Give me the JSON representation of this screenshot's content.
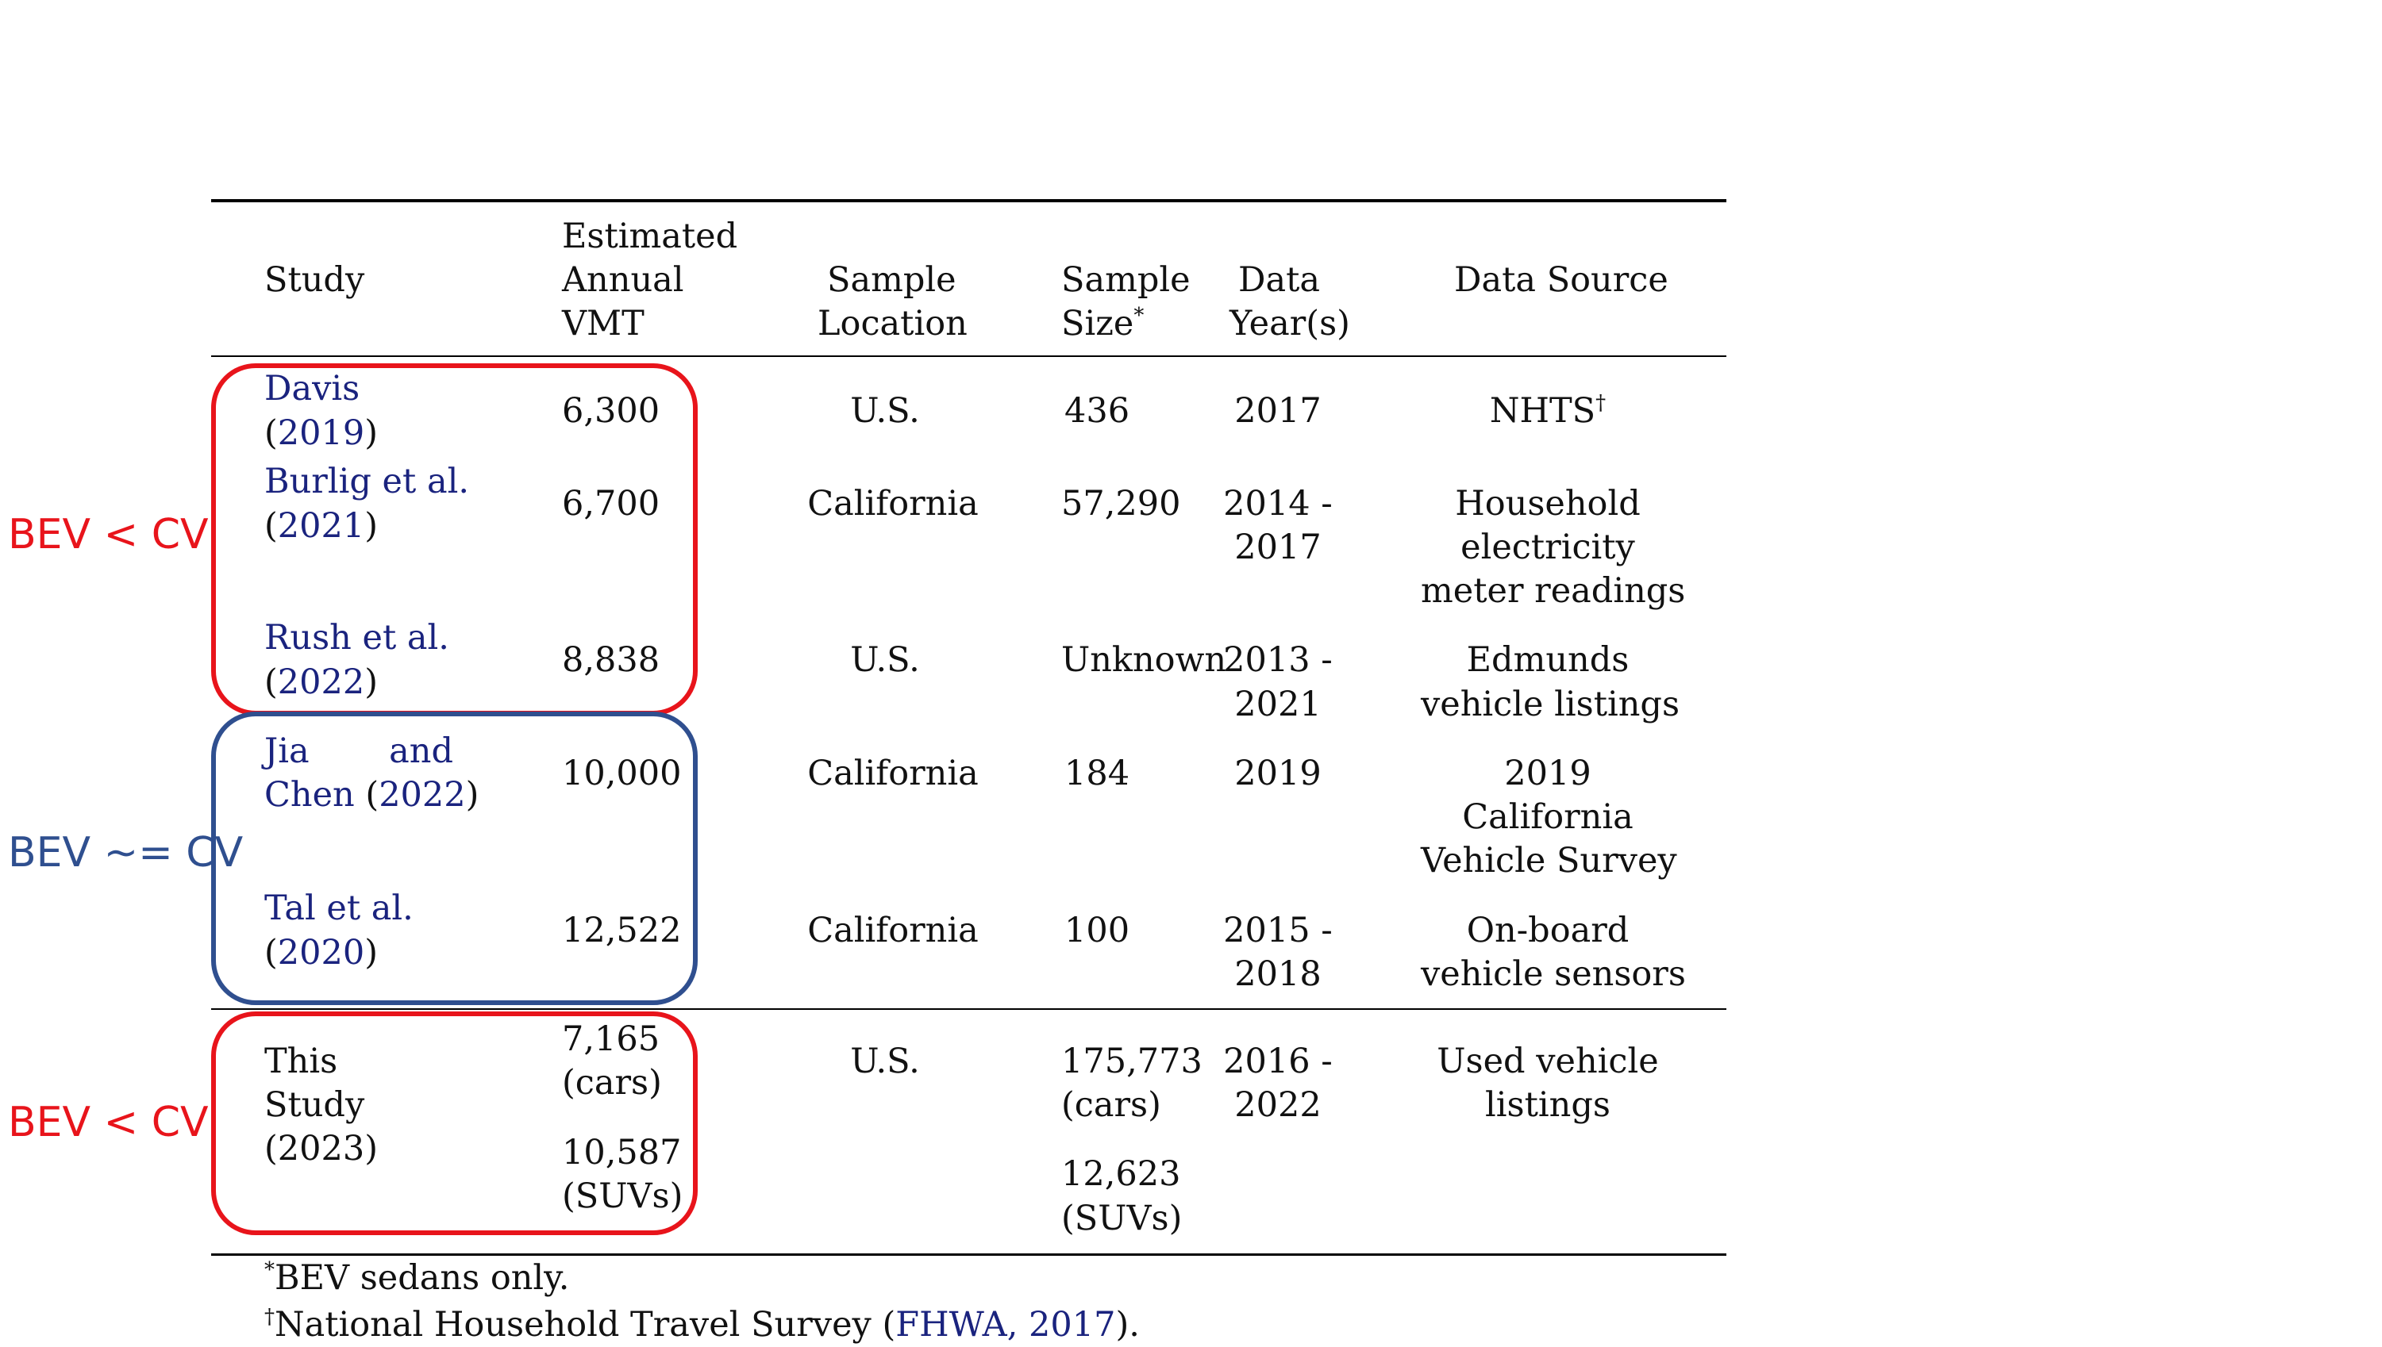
{
  "table": {
    "headers": {
      "study": "Study",
      "vmt": [
        "Estimated",
        "Annual",
        "VMT"
      ],
      "location": [
        "Sample",
        "Location"
      ],
      "size": [
        "Sample",
        "Size"
      ],
      "size_mark": "*",
      "year": [
        "Data",
        "Year(s)"
      ],
      "source": "Data Source"
    },
    "rows": [
      {
        "study": [
          "Davis",
          "(2019)"
        ],
        "vmt": [
          "6,300"
        ],
        "location": "U.S.",
        "size": [
          "436"
        ],
        "year": [
          "2017"
        ],
        "source": [
          "NHTS"
        ],
        "source_mark": "†"
      },
      {
        "study": [
          "Burlig et al.",
          "(2021)"
        ],
        "vmt": [
          "6,700"
        ],
        "location": "California",
        "size": [
          "57,290"
        ],
        "year": [
          "2014 -",
          "2017"
        ],
        "source": [
          "Household",
          "electricity",
          "meter readings"
        ]
      },
      {
        "study": [
          "Rush et al.",
          "(2022)"
        ],
        "vmt": [
          "8,838"
        ],
        "location": "U.S.",
        "size": [
          "Unknown"
        ],
        "year": [
          "2013 -",
          "2021"
        ],
        "source": [
          "Edmunds",
          "vehicle listings"
        ]
      },
      {
        "study": [
          "Jia and",
          "Chen (2022)"
        ],
        "vmt": [
          "10,000"
        ],
        "location": "California",
        "size": [
          "184"
        ],
        "year": [
          "2019"
        ],
        "source": [
          "2019",
          "California",
          "Vehicle Survey"
        ]
      },
      {
        "study": [
          "Tal et al.",
          "(2020)"
        ],
        "vmt": [
          "12,522"
        ],
        "location": "California",
        "size": [
          "100"
        ],
        "year": [
          "2015 -",
          "2018"
        ],
        "source": [
          "On-board",
          "vehicle sensors"
        ]
      },
      {
        "study": [
          "This",
          "Study",
          "(2023)"
        ],
        "vmt": [
          "7,165",
          "(cars)",
          "10,587",
          "(SUVs)"
        ],
        "location": "U.S.",
        "size": [
          "175,773",
          "(cars)",
          "12,623",
          "(SUVs)"
        ],
        "year": [
          "2016 -",
          "2022"
        ],
        "source": [
          "Used vehicle",
          "listings"
        ]
      }
    ],
    "footnotes": {
      "n1_mark": "*",
      "n1_text": "BEV sedans only.",
      "n2_mark": "†",
      "n2_text": "National Household Travel Survey (",
      "n2_cite": "FHWA, 2017",
      "n2_end": ")."
    }
  },
  "annotations": [
    {
      "label": "BEV < CV",
      "color": "#e8141b"
    },
    {
      "label": "BEV ~= CV",
      "color": "#2f4f8f"
    },
    {
      "label": "BEV < CV",
      "color": "#e8141b"
    }
  ],
  "colors": {
    "red_box": "#e8141b",
    "blue_box": "#2f4f8f",
    "citation": "#1a237e"
  }
}
